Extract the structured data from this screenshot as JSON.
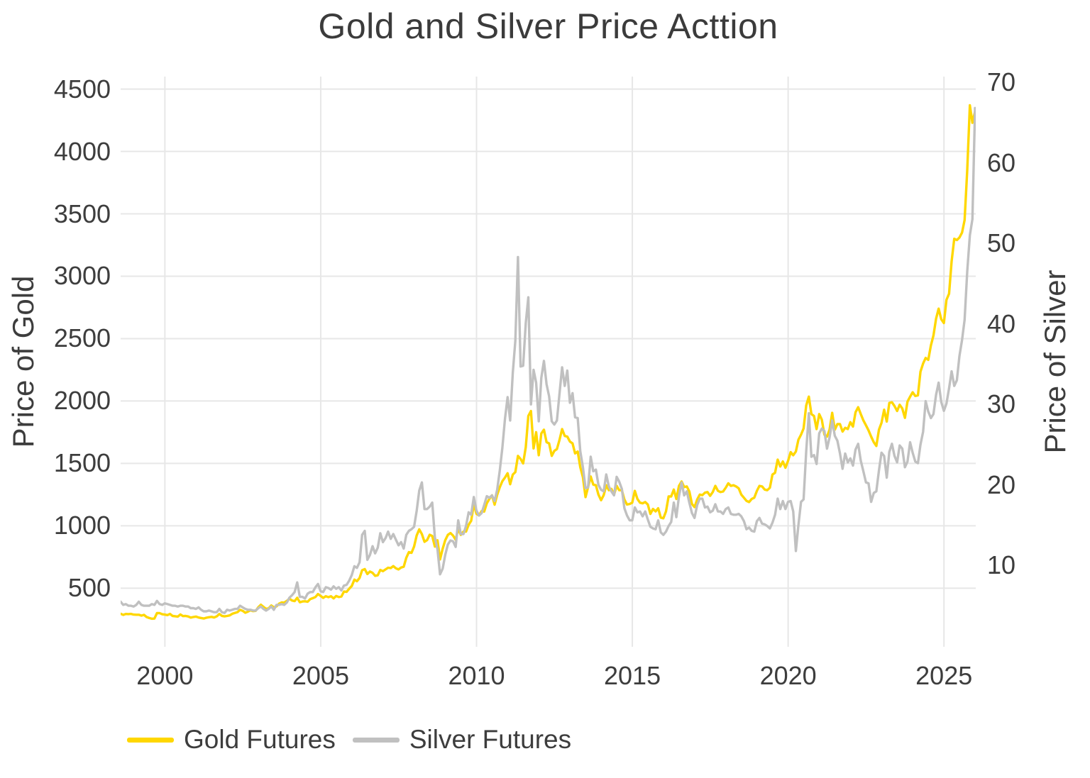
{
  "chart_data": {
    "type": "line",
    "title": "Gold and Silver Price Acttion",
    "grid": true,
    "background": "#ffffff",
    "legend_position": "bottom-left",
    "x_axis": {
      "ticks": [
        2000,
        2005,
        2010,
        2015,
        2020,
        2025
      ],
      "range": [
        1998.58,
        2026.02
      ]
    },
    "y_axis_left": {
      "label": "Price of Gold",
      "ticks": [
        500,
        1000,
        1500,
        2000,
        2500,
        3000,
        3500,
        4000,
        4500
      ],
      "range": [
        30,
        4600
      ]
    },
    "y_axis_right": {
      "label": "Price of Silver",
      "ticks": [
        10,
        20,
        30,
        40,
        50,
        60,
        70
      ],
      "range": [
        -0.1,
        70.7
      ]
    },
    "legend": [
      {
        "name": "Gold Futures",
        "color": "#FFD700"
      },
      {
        "name": "Silver Futures",
        "color": "#C0C0C0"
      }
    ],
    "x_start": 1998.58,
    "x_step": 0.0833333,
    "x_unit": "year (monthly samples)",
    "series": [
      {
        "name": "Gold Futures",
        "axis": "left",
        "color": "#FFD700",
        "values": [
          295,
          286,
          293,
          292,
          294,
          288,
          287,
          287,
          280,
          286,
          269,
          261,
          255,
          256,
          300,
          300,
          291,
          288,
          284,
          294,
          277,
          275,
          272,
          289,
          276,
          277,
          273,
          264,
          269,
          272,
          265,
          261,
          257,
          263,
          267,
          270,
          265,
          274,
          293,
          278,
          274,
          277,
          282,
          295,
          301,
          308,
          326,
          318,
          303,
          312,
          323,
          316,
          318,
          347,
          367,
          350,
          334,
          338,
          361,
          346,
          354,
          375,
          385,
          384,
          398,
          416,
          401,
          396,
          423,
          387,
          393,
          395,
          391,
          412,
          420,
          429,
          453,
          438,
          422,
          435,
          428,
          435,
          418,
          437,
          429,
          433,
          473,
          470,
          495,
          517,
          568,
          556,
          582,
          644,
          653,
          613,
          633,
          623,
          599,
          603,
          646,
          636,
          650,
          664,
          661,
          677,
          659,
          650,
          665,
          672,
          743,
          789,
          783,
          833,
          923,
          971,
          933,
          871,
          885,
          928,
          918,
          833,
          884,
          730,
          816,
          884,
          927,
          942,
          922,
          888,
          975,
          927,
          953,
          953,
          1008,
          1040,
          1175,
          1096,
          1083,
          1118,
          1114,
          1180,
          1215,
          1244,
          1169,
          1248,
          1309,
          1357,
          1386,
          1421,
          1333,
          1410,
          1430,
          1560,
          1535,
          1500,
          1630,
          1880,
          1920,
          1620,
          1750,
          1565,
          1740,
          1770,
          1670,
          1660,
          1560,
          1600,
          1615,
          1690,
          1775,
          1720,
          1715,
          1675,
          1660,
          1580,
          1595,
          1470,
          1390,
          1230,
          1310,
          1395,
          1330,
          1325,
          1250,
          1205,
          1245,
          1325,
          1285,
          1295,
          1250,
          1320,
          1285,
          1285,
          1210,
          1170,
          1175,
          1185,
          1280,
          1215,
          1185,
          1180,
          1190,
          1170,
          1095,
          1135,
          1115,
          1140,
          1065,
          1060,
          1115,
          1235,
          1235,
          1290,
          1215,
          1320,
          1355,
          1310,
          1315,
          1275,
          1175,
          1150,
          1210,
          1250,
          1245,
          1265,
          1270,
          1240,
          1270,
          1320,
          1280,
          1270,
          1275,
          1305,
          1340,
          1320,
          1325,
          1315,
          1300,
          1250,
          1225,
          1200,
          1190,
          1215,
          1225,
          1280,
          1320,
          1315,
          1290,
          1285,
          1305,
          1410,
          1425,
          1530,
          1475,
          1515,
          1465,
          1520,
          1590,
          1565,
          1595,
          1690,
          1730,
          1780,
          1965,
          2035,
          1895,
          1880,
          1775,
          1895,
          1850,
          1730,
          1715,
          1770,
          1905,
          1770,
          1815,
          1815,
          1755,
          1785,
          1775,
          1830,
          1795,
          1910,
          1950,
          1895,
          1845,
          1805,
          1765,
          1715,
          1670,
          1640,
          1770,
          1825,
          1930,
          1835,
          1985,
          1990,
          1960,
          1920,
          1970,
          1940,
          1865,
          1995,
          2035,
          2070,
          2040,
          2045,
          2235,
          2300,
          2345,
          2330,
          2445,
          2525,
          2660,
          2740,
          2655,
          2625,
          2810,
          2860,
          3120,
          3300,
          3290,
          3310,
          3350,
          3450,
          3850,
          4370,
          4230,
          4320
        ]
      },
      {
        "name": "Silver Futures",
        "axis": "right",
        "color": "#C0C0C0",
        "values": [
          5.5,
          5.1,
          5.2,
          5.0,
          5.0,
          4.9,
          5.1,
          5.5,
          5.1,
          5.0,
          5.0,
          5.0,
          5.2,
          5.1,
          5.6,
          5.2,
          5.1,
          5.3,
          5.2,
          5.1,
          5.0,
          5.0,
          4.9,
          5.0,
          5.0,
          4.9,
          4.9,
          4.7,
          4.7,
          4.6,
          4.8,
          4.5,
          4.3,
          4.3,
          4.4,
          4.3,
          4.2,
          4.2,
          4.6,
          4.2,
          4.1,
          4.5,
          4.4,
          4.5,
          4.6,
          4.6,
          5.0,
          4.8,
          4.6,
          4.5,
          4.5,
          4.4,
          4.4,
          4.7,
          4.9,
          4.6,
          4.4,
          4.6,
          4.9,
          4.5,
          5.1,
          5.1,
          5.2,
          5.1,
          5.4,
          6.0,
          6.3,
          6.7,
          7.9,
          6.1,
          6.1,
          5.9,
          6.5,
          6.7,
          6.7,
          7.3,
          7.7,
          6.8,
          6.7,
          7.3,
          7.2,
          7.0,
          7.4,
          7.1,
          7.3,
          6.9,
          7.5,
          7.6,
          8.1,
          8.8,
          9.9,
          9.7,
          10.4,
          13.8,
          14.3,
          10.7,
          11.3,
          12.4,
          11.5,
          12.2,
          14.0,
          12.9,
          13.4,
          14.2,
          13.3,
          13.9,
          13.2,
          12.5,
          12.9,
          12.1,
          13.8,
          14.3,
          14.5,
          14.8,
          16.8,
          19.3,
          20.3,
          17.0,
          17.0,
          17.3,
          17.8,
          13.5,
          12.0,
          8.9,
          9.6,
          11.3,
          12.6,
          13.1,
          13.0,
          12.3,
          15.6,
          13.9,
          13.9,
          14.9,
          16.6,
          16.3,
          18.5,
          16.8,
          16.2,
          16.5,
          17.5,
          18.6,
          18.4,
          18.7,
          18.0,
          19.4,
          21.8,
          24.6,
          28.2,
          30.9,
          28.0,
          33.9,
          37.9,
          48.3,
          34.7,
          34.8,
          40.1,
          43.3,
          30.0,
          34.3,
          32.7,
          27.9,
          33.3,
          35.4,
          32.5,
          31.0,
          27.9,
          27.5,
          28.0,
          31.4,
          34.6,
          32.3,
          34.2,
          30.2,
          31.4,
          28.4,
          28.3,
          24.2,
          22.2,
          19.6,
          19.7,
          23.5,
          21.7,
          21.9,
          20.0,
          19.4,
          19.2,
          21.3,
          19.8,
          19.2,
          18.7,
          21.0,
          20.4,
          19.5,
          17.1,
          16.2,
          15.6,
          15.6,
          17.2,
          16.6,
          16.7,
          16.1,
          16.7,
          15.7,
          14.8,
          14.6,
          14.5,
          15.6,
          14.1,
          13.8,
          14.2,
          14.9,
          15.4,
          17.8,
          16.0,
          18.6,
          20.3,
          18.7,
          19.2,
          17.8,
          16.5,
          15.9,
          17.5,
          18.3,
          18.3,
          17.2,
          17.3,
          16.6,
          16.8,
          17.6,
          16.7,
          16.7,
          16.4,
          17.0,
          17.2,
          16.4,
          16.3,
          16.3,
          16.4,
          16.1,
          15.5,
          14.5,
          14.7,
          14.3,
          14.2,
          15.5,
          15.9,
          15.2,
          15.1,
          14.9,
          14.6,
          15.3,
          16.3,
          18.3,
          17.0,
          18.0,
          17.0,
          17.9,
          18.0,
          16.7,
          11.8,
          15.0,
          17.9,
          18.2,
          24.2,
          28.9,
          23.5,
          23.7,
          22.6,
          26.4,
          27.0,
          26.7,
          24.5,
          25.9,
          28.0,
          26.1,
          25.5,
          23.9,
          22.0,
          23.9,
          22.8,
          23.3,
          22.4,
          24.4,
          25.1,
          23.0,
          21.7,
          20.3,
          20.2,
          17.9,
          19.0,
          19.2,
          21.8,
          24.0,
          23.6,
          20.9,
          24.1,
          25.1,
          23.6,
          22.8,
          24.9,
          24.5,
          22.2,
          22.9,
          25.3,
          24.0,
          22.9,
          22.7,
          25.0,
          26.6,
          30.4,
          29.1,
          28.3,
          28.8,
          31.2,
          32.7,
          30.3,
          29.2,
          30.1,
          32.0,
          34.1,
          32.3,
          33.0,
          36.0,
          38.0,
          40.5,
          46.5,
          51.0,
          53.0,
          66.8
        ]
      }
    ]
  }
}
